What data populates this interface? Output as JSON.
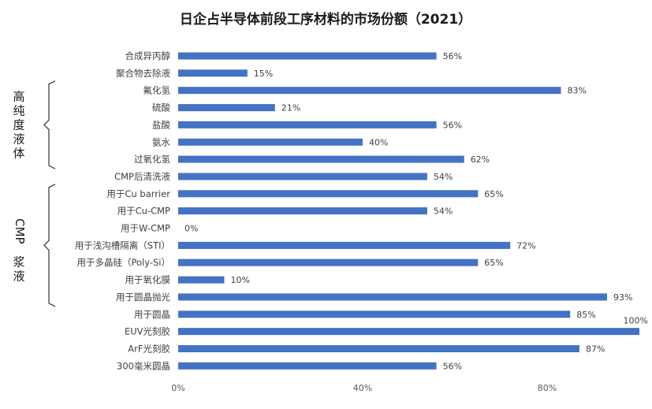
{
  "chart_data": {
    "type": "bar",
    "orientation": "horizontal",
    "title": "日企占半导体前段工序材料的市场份额（2021）",
    "categories": [
      "合成异丙醇",
      "聚合物去除液",
      "氟化氢",
      "硫酸",
      "盐酸",
      "氨水",
      "过氧化氢",
      "CMP后清洗液",
      "用于Cu barrier",
      "用于Cu-CMP",
      "用于W-CMP",
      "用于浅沟槽隔离（STI）",
      "用于多晶硅（Poly-Si）",
      "用于氧化膜",
      "用于圆晶抛光",
      "用于圆晶",
      "EUV光刻胶",
      "ArF光刻胶",
      "300毫米圆晶"
    ],
    "values": [
      56,
      15,
      83,
      21,
      56,
      40,
      62,
      54,
      65,
      54,
      0,
      72,
      65,
      10,
      93,
      85,
      100,
      87,
      56
    ],
    "value_labels": [
      "56%",
      "15%",
      "83%",
      "21%",
      "56%",
      "40%",
      "62%",
      "54%",
      "65%",
      "54%",
      "0%",
      "72%",
      "65%",
      "10%",
      "93%",
      "85%",
      "100%",
      "87%",
      "56%"
    ],
    "xlim": [
      0,
      100
    ],
    "xticks": [
      0,
      40,
      80
    ],
    "xtick_labels": [
      "0%",
      "40%",
      "80%"
    ],
    "bar_color": "#4472c4",
    "grid": false,
    "groups": [
      {
        "label": "高纯度液体",
        "from_index": 2,
        "to_index": 6
      },
      {
        "label": "CMP浆液",
        "from_index": 8,
        "to_index": 14
      }
    ]
  }
}
